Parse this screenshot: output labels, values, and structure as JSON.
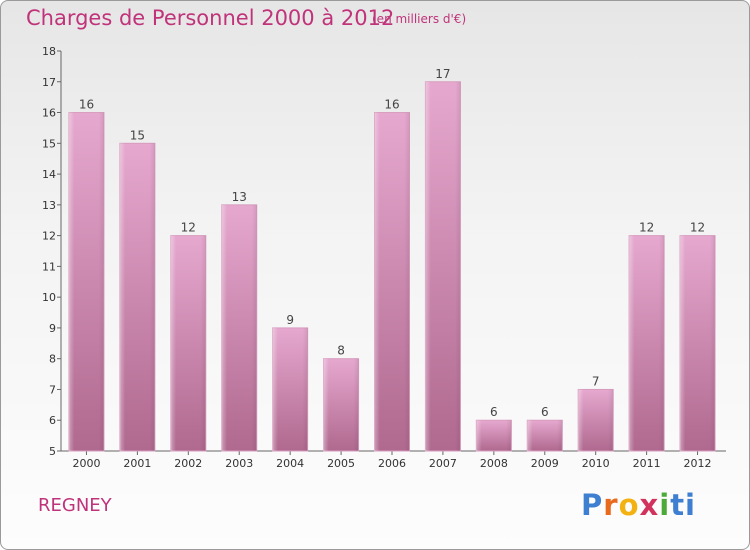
{
  "title": "Charges de Personnel 2000 à 2012",
  "subtitle": "(en milliers d'€)",
  "location": "REGNEY",
  "logo": {
    "letters": [
      "P",
      "r",
      "o",
      "x",
      "i",
      "ti"
    ]
  },
  "colors": {
    "accent": "#c0337a",
    "bar_top": "#e6a8cf",
    "bar_bottom": "#b0698f"
  },
  "chart_data": {
    "type": "bar",
    "categories": [
      "2000",
      "2001",
      "2002",
      "2003",
      "2004",
      "2005",
      "2006",
      "2007",
      "2008",
      "2009",
      "2010",
      "2011",
      "2012"
    ],
    "values": [
      16,
      15,
      12,
      13,
      9,
      8,
      16,
      17,
      6,
      6,
      7,
      12,
      12
    ],
    "ylim": [
      5,
      18
    ],
    "yticks": [
      5,
      6,
      7,
      8,
      9,
      10,
      11,
      12,
      13,
      14,
      15,
      16,
      17,
      18
    ],
    "grid": false
  }
}
